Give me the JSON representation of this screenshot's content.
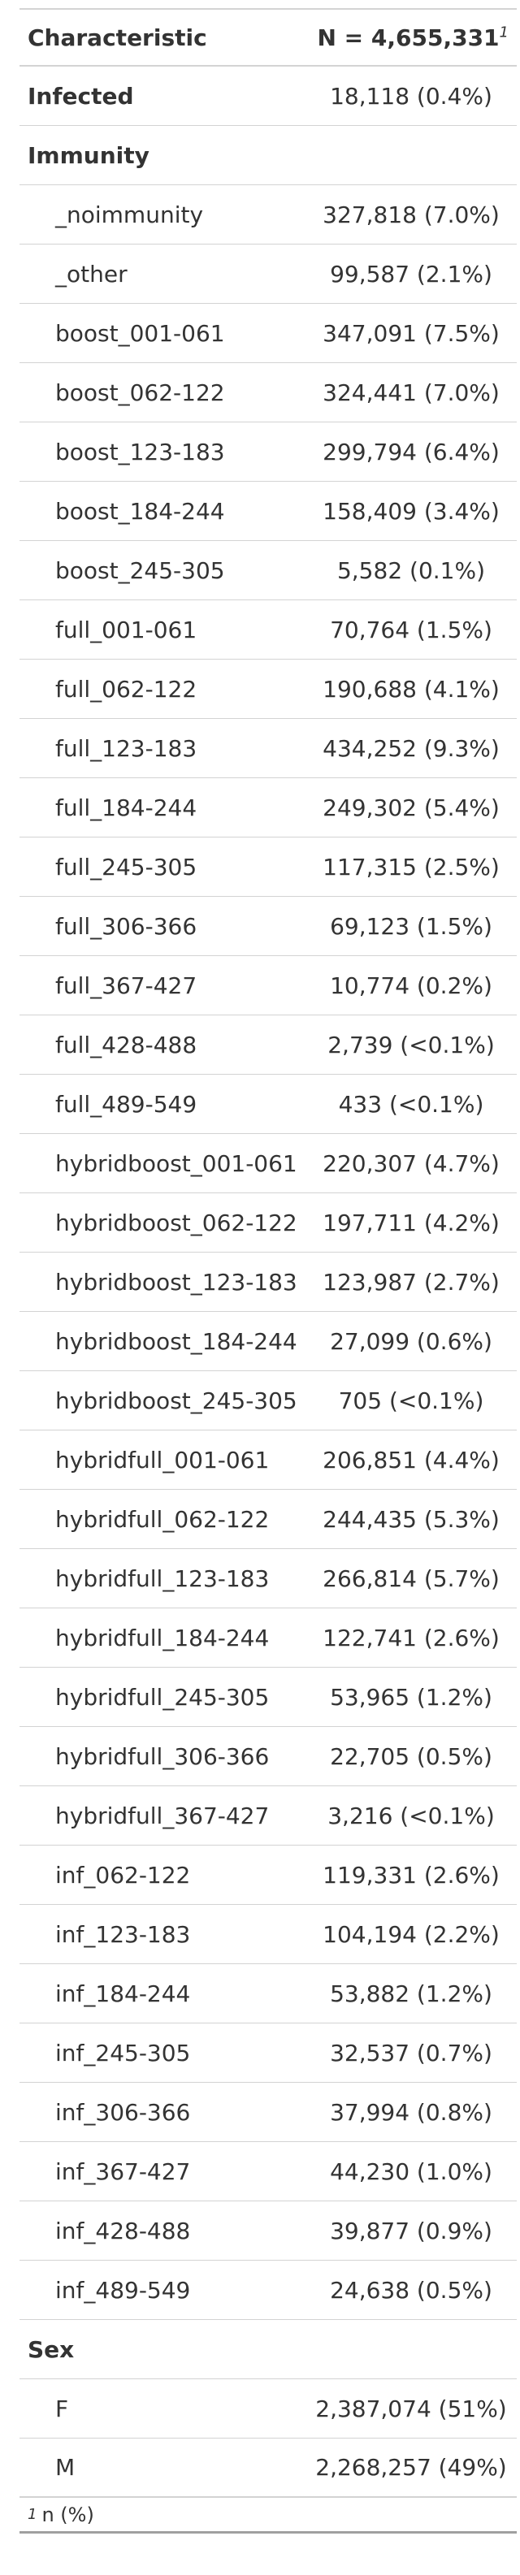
{
  "header": {
    "characteristic": "Characteristic",
    "n_label": "N = 4,655,331",
    "footnote_mark": "1"
  },
  "infected": {
    "label": "Infected",
    "value": "18,118 (0.4%)"
  },
  "immunity": {
    "label": "Immunity",
    "rows": [
      {
        "label": "_noimmunity",
        "value": "327,818 (7.0%)"
      },
      {
        "label": "_other",
        "value": "99,587 (2.1%)"
      },
      {
        "label": "boost_001-061",
        "value": "347,091 (7.5%)"
      },
      {
        "label": "boost_062-122",
        "value": "324,441 (7.0%)"
      },
      {
        "label": "boost_123-183",
        "value": "299,794 (6.4%)"
      },
      {
        "label": "boost_184-244",
        "value": "158,409 (3.4%)"
      },
      {
        "label": "boost_245-305",
        "value": "5,582 (0.1%)"
      },
      {
        "label": "full_001-061",
        "value": "70,764 (1.5%)"
      },
      {
        "label": "full_062-122",
        "value": "190,688 (4.1%)"
      },
      {
        "label": "full_123-183",
        "value": "434,252 (9.3%)"
      },
      {
        "label": "full_184-244",
        "value": "249,302 (5.4%)"
      },
      {
        "label": "full_245-305",
        "value": "117,315 (2.5%)"
      },
      {
        "label": "full_306-366",
        "value": "69,123 (1.5%)"
      },
      {
        "label": "full_367-427",
        "value": "10,774 (0.2%)"
      },
      {
        "label": "full_428-488",
        "value": "2,739 (<0.1%)"
      },
      {
        "label": "full_489-549",
        "value": "433 (<0.1%)"
      },
      {
        "label": "hybridboost_001-061",
        "value": "220,307 (4.7%)"
      },
      {
        "label": "hybridboost_062-122",
        "value": "197,711 (4.2%)"
      },
      {
        "label": "hybridboost_123-183",
        "value": "123,987 (2.7%)"
      },
      {
        "label": "hybridboost_184-244",
        "value": "27,099 (0.6%)"
      },
      {
        "label": "hybridboost_245-305",
        "value": "705 (<0.1%)"
      },
      {
        "label": "hybridfull_001-061",
        "value": "206,851 (4.4%)"
      },
      {
        "label": "hybridfull_062-122",
        "value": "244,435 (5.3%)"
      },
      {
        "label": "hybridfull_123-183",
        "value": "266,814 (5.7%)"
      },
      {
        "label": "hybridfull_184-244",
        "value": "122,741 (2.6%)"
      },
      {
        "label": "hybridfull_245-305",
        "value": "53,965 (1.2%)"
      },
      {
        "label": "hybridfull_306-366",
        "value": "22,705 (0.5%)"
      },
      {
        "label": "hybridfull_367-427",
        "value": "3,216 (<0.1%)"
      },
      {
        "label": "inf_062-122",
        "value": "119,331 (2.6%)"
      },
      {
        "label": "inf_123-183",
        "value": "104,194 (2.2%)"
      },
      {
        "label": "inf_184-244",
        "value": "53,882 (1.2%)"
      },
      {
        "label": "inf_245-305",
        "value": "32,537 (0.7%)"
      },
      {
        "label": "inf_306-366",
        "value": "37,994 (0.8%)"
      },
      {
        "label": "inf_367-427",
        "value": "44,230 (1.0%)"
      },
      {
        "label": "inf_428-488",
        "value": "39,877 (0.9%)"
      },
      {
        "label": "inf_489-549",
        "value": "24,638 (0.5%)"
      }
    ]
  },
  "sex": {
    "label": "Sex",
    "rows": [
      {
        "label": "F",
        "value": "2,387,074 (51%)"
      },
      {
        "label": "M",
        "value": "2,268,257 (49%)"
      }
    ]
  },
  "footnote": {
    "mark": "1",
    "text": "n (%)"
  }
}
